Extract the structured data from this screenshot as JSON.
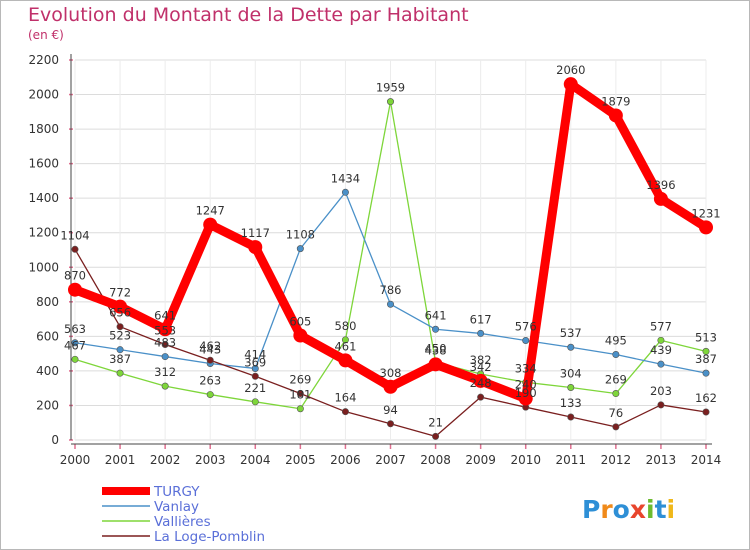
{
  "header": {
    "title": "Evolution du Montant de la Dette par Habitant",
    "subtitle": "(en €)"
  },
  "logo": {
    "text": "Proxiti"
  },
  "chart_data": {
    "type": "line",
    "title": "Evolution du Montant de la Dette par Habitant",
    "subtitle": "(en €)",
    "xlabel": "",
    "ylabel": "",
    "x": [
      2000,
      2001,
      2002,
      2003,
      2004,
      2005,
      2006,
      2007,
      2008,
      2009,
      2010,
      2011,
      2012,
      2013,
      2014
    ],
    "ylim": [
      0,
      2200
    ],
    "yticks": [
      0,
      200,
      400,
      600,
      800,
      1000,
      1200,
      1400,
      1600,
      1800,
      2000,
      2200
    ],
    "grid": true,
    "legend_position": "bottom-left",
    "series": [
      {
        "name": "TURGY",
        "color": "#ff0000",
        "values": [
          870,
          772,
          641,
          1247,
          1117,
          605,
          461,
          308,
          438,
          342,
          240,
          2060,
          1879,
          1396,
          1231
        ]
      },
      {
        "name": "Vanlay",
        "color": "#4a90c8",
        "values": [
          563,
          523,
          483,
          443,
          414,
          1108,
          1434,
          786,
          641,
          617,
          576,
          537,
          495,
          439,
          387
        ]
      },
      {
        "name": "Vallières",
        "color": "#7ed63a",
        "values": [
          467,
          387,
          312,
          263,
          221,
          181,
          580,
          1959,
          450,
          382,
          334,
          304,
          269,
          577,
          513
        ]
      },
      {
        "name": "La Loge-Pomblin",
        "color": "#7a1f1f",
        "values": [
          1104,
          656,
          553,
          462,
          369,
          269,
          164,
          94,
          21,
          248,
          190,
          133,
          76,
          203,
          162
        ]
      }
    ],
    "value_labels": [
      [
        "870",
        "772",
        "641",
        "1247",
        "1117",
        "605",
        "461",
        "308",
        "438",
        "342",
        "240",
        "2060",
        "1879",
        "1396",
        "1231"
      ],
      [
        "563",
        "523",
        "483",
        "443",
        "414",
        "1108",
        "1434",
        "786",
        "641",
        "617",
        "576",
        "537",
        "495",
        "439",
        "387"
      ],
      [
        "467",
        "387",
        "312",
        "263",
        "221",
        "181",
        "580",
        "1959",
        "450",
        "382",
        "334",
        "304",
        "269",
        "577",
        "513"
      ],
      [
        "1104",
        "656",
        "553",
        "462",
        "369",
        "269",
        "164",
        "94",
        "21",
        "248",
        "190",
        "133",
        "76",
        "203",
        "162"
      ]
    ]
  }
}
